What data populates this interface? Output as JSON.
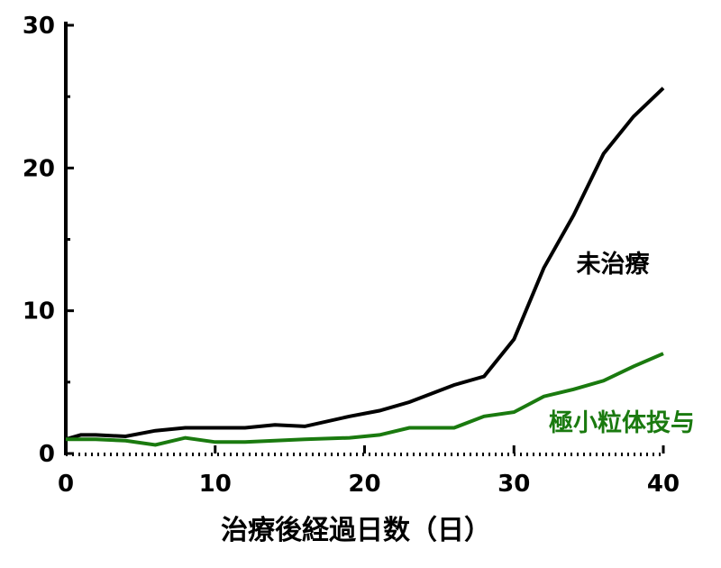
{
  "chart_data": {
    "type": "line",
    "title": "",
    "xlabel": "治療後経過日数（日）",
    "ylabel": "",
    "xlim": [
      0,
      40
    ],
    "ylim": [
      0,
      30
    ],
    "x_ticks": [
      0,
      10,
      20,
      30,
      40
    ],
    "y_ticks": [
      0,
      10,
      20,
      30
    ],
    "grid": false,
    "series": [
      {
        "name": "未治療",
        "color": "#000000",
        "x": [
          0,
          1,
          2,
          4,
          6,
          8,
          10,
          12,
          14,
          16,
          19,
          21,
          23,
          26,
          28,
          30,
          32,
          34,
          36,
          38,
          40
        ],
        "y": [
          1.0,
          1.3,
          1.3,
          1.2,
          1.6,
          1.8,
          1.8,
          1.8,
          2.0,
          1.9,
          2.6,
          3.0,
          3.6,
          4.8,
          5.4,
          8.0,
          13.0,
          16.7,
          21.0,
          23.6,
          25.6
        ]
      },
      {
        "name": "極小粒体投与",
        "color": "#1a7a0f",
        "x": [
          0,
          2,
          4,
          6,
          8,
          10,
          12,
          14,
          16,
          19,
          21,
          23,
          26,
          28,
          30,
          32,
          34,
          36,
          38,
          40
        ],
        "y": [
          1.0,
          1.0,
          0.9,
          0.6,
          1.1,
          0.8,
          0.8,
          0.9,
          1.0,
          1.1,
          1.3,
          1.8,
          1.8,
          2.6,
          2.9,
          4.0,
          4.5,
          5.1,
          6.1,
          7.0
        ]
      }
    ]
  }
}
